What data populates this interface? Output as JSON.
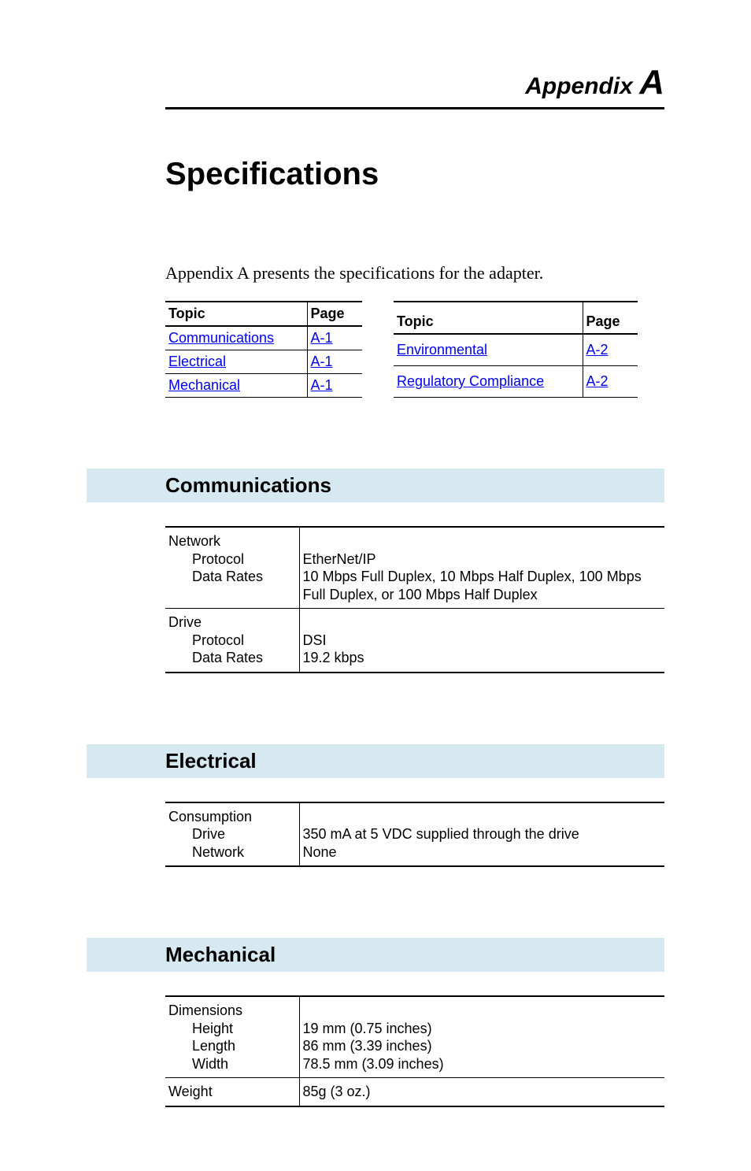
{
  "header": {
    "appendix_word": "Appendix",
    "appendix_letter": "A"
  },
  "title": "Specifications",
  "intro": "Appendix A presents the specifications for the adapter.",
  "toc": {
    "col_topic": "Topic",
    "col_page": "Page",
    "left": [
      {
        "topic": "Communications",
        "page": "A-1"
      },
      {
        "topic": "Electrical",
        "page": "A-1"
      },
      {
        "topic": "Mechanical",
        "page": "A-1"
      }
    ],
    "right": [
      {
        "topic": "Environmental",
        "page": "A-2"
      },
      {
        "topic": "Regulatory Compliance",
        "page": "A-2"
      }
    ]
  },
  "sections": {
    "communications": {
      "heading": "Communications",
      "rows": [
        {
          "label_main": "Network",
          "label_sub1": "Protocol",
          "label_sub2": "Data Rates",
          "value_line1": "EtherNet/IP",
          "value_line2": "10 Mbps Full Duplex, 10 Mbps Half Duplex, 100 Mbps Full Duplex, or 100 Mbps Half Duplex"
        },
        {
          "label_main": "Drive",
          "label_sub1": "Protocol",
          "label_sub2": "Data Rates",
          "value_line1": "DSI",
          "value_line2": "19.2 kbps"
        }
      ]
    },
    "electrical": {
      "heading": "Electrical",
      "rows": [
        {
          "label_main": "Consumption",
          "label_sub1": "Drive",
          "label_sub2": "Network",
          "value_line1": "350 mA at 5 VDC supplied through the drive",
          "value_line2": "None"
        }
      ]
    },
    "mechanical": {
      "heading": "Mechanical",
      "rows": [
        {
          "label_main": "Dimensions",
          "label_sub1": "Height",
          "label_sub2": "Length",
          "label_sub3": "Width",
          "value_line1": "19 mm (0.75 inches)",
          "value_line2": "86 mm (3.39 inches)",
          "value_line3": "78.5 mm (3.09 inches)"
        },
        {
          "label_main": "Weight",
          "value_line1": "85g (3 oz.)"
        }
      ]
    }
  },
  "colors": {
    "section_bg": "#d6e8f0",
    "link": "#0000ee",
    "text": "#000000",
    "rule": "#000000"
  }
}
